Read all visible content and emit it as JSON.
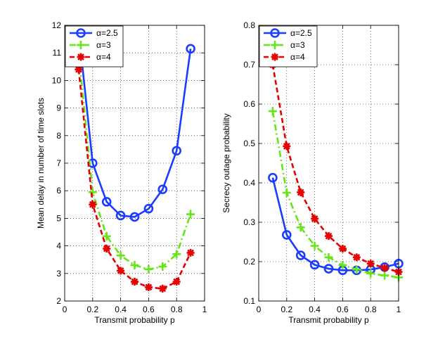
{
  "chart_data": [
    {
      "type": "line",
      "xlabel": "Transmit probability p",
      "ylabel": "Mean delay in number of time slots",
      "xlim": [
        0,
        1
      ],
      "ylim": [
        2,
        12
      ],
      "xticks": [
        "0",
        "0.2",
        "0.4",
        "0.6",
        "0.8",
        "1"
      ],
      "yticks": [
        "2",
        "3",
        "4",
        "5",
        "6",
        "7",
        "8",
        "9",
        "10",
        "11",
        "12"
      ],
      "grid": true,
      "legend_position": "top-left",
      "series": [
        {
          "name": "α=2.5",
          "color": "#1a3cff",
          "marker": "circle",
          "line": "solid",
          "x": [
            0.1,
            0.2,
            0.3,
            0.4,
            0.5,
            0.6,
            0.7,
            0.8,
            0.9
          ],
          "y": [
            11.8,
            7.0,
            5.6,
            5.1,
            5.05,
            5.35,
            6.05,
            7.45,
            11.15
          ]
        },
        {
          "name": "α=3",
          "color": "#66e619",
          "marker": "plus",
          "line": "dashdot",
          "x": [
            0.1,
            0.2,
            0.3,
            0.4,
            0.5,
            0.6,
            0.7,
            0.8,
            0.9
          ],
          "y": [
            11.0,
            5.95,
            4.35,
            3.65,
            3.3,
            3.15,
            3.25,
            3.7,
            5.15
          ]
        },
        {
          "name": "α=4",
          "color": "#e60000",
          "marker": "star",
          "line": "dashed",
          "x": [
            0.1,
            0.2,
            0.3,
            0.4,
            0.5,
            0.6,
            0.7,
            0.8,
            0.9
          ],
          "y": [
            10.4,
            5.5,
            3.9,
            3.1,
            2.7,
            2.5,
            2.45,
            2.7,
            3.75
          ]
        }
      ]
    },
    {
      "type": "line",
      "xlabel": "Transmit probability p",
      "ylabel": "Secrecy outage probability",
      "xlim": [
        0,
        1
      ],
      "ylim": [
        0.1,
        0.8
      ],
      "xticks": [
        "0",
        "0.2",
        "0.4",
        "0.6",
        "0.8",
        "1"
      ],
      "yticks": [
        "0.1",
        "0.2",
        "0.3",
        "0.4",
        "0.5",
        "0.6",
        "0.7",
        "0.8"
      ],
      "grid": true,
      "legend_position": "top-left",
      "series": [
        {
          "name": "α=2.5",
          "color": "#1a3cff",
          "marker": "circle",
          "line": "solid",
          "x": [
            0.1,
            0.2,
            0.3,
            0.4,
            0.5,
            0.6,
            0.7,
            0.8,
            0.9,
            1.0
          ],
          "y": [
            0.413,
            0.268,
            0.216,
            0.192,
            0.182,
            0.178,
            0.178,
            0.18,
            0.186,
            0.195
          ]
        },
        {
          "name": "α=3",
          "color": "#66e619",
          "marker": "plus",
          "line": "dashdot",
          "x": [
            0.1,
            0.2,
            0.3,
            0.4,
            0.5,
            0.6,
            0.7,
            0.8,
            0.9,
            1.0
          ],
          "y": [
            0.582,
            0.375,
            0.287,
            0.24,
            0.211,
            0.191,
            0.18,
            0.17,
            0.165,
            0.16
          ]
        },
        {
          "name": "α=4",
          "color": "#e60000",
          "marker": "star",
          "line": "dashed",
          "x": [
            0.1,
            0.2,
            0.3,
            0.4,
            0.5,
            0.6,
            0.7,
            0.8,
            0.9,
            1.0
          ],
          "y": [
            0.7,
            0.493,
            0.376,
            0.309,
            0.265,
            0.233,
            0.211,
            0.195,
            0.184,
            0.174
          ]
        }
      ]
    }
  ]
}
